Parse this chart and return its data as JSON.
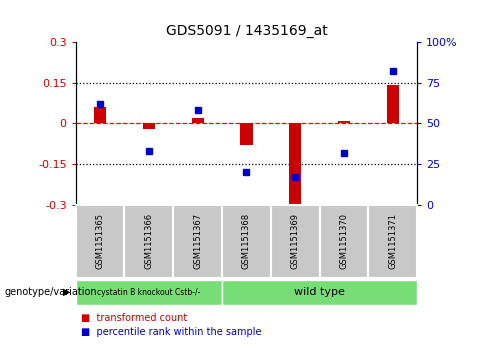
{
  "title": "GDS5091 / 1435169_at",
  "samples": [
    "GSM1151365",
    "GSM1151366",
    "GSM1151367",
    "GSM1151368",
    "GSM1151369",
    "GSM1151370",
    "GSM1151371"
  ],
  "red_values": [
    0.06,
    -0.02,
    0.02,
    -0.08,
    -0.32,
    0.01,
    0.14
  ],
  "blue_values": [
    62,
    33,
    58,
    20,
    17,
    32,
    82
  ],
  "ylim": [
    -0.3,
    0.3
  ],
  "y2lim": [
    0,
    100
  ],
  "yticks": [
    -0.3,
    -0.15,
    0.0,
    0.15,
    0.3
  ],
  "y2ticks": [
    0,
    25,
    50,
    75,
    100
  ],
  "ytick_labels": [
    "-0.3",
    "-0.15",
    "0",
    "0.15",
    "0.3"
  ],
  "y2tick_labels": [
    "0",
    "25",
    "50",
    "75",
    "100%"
  ],
  "hlines": [
    -0.15,
    0.0,
    0.15
  ],
  "hline_styles": [
    "dotted",
    "dashed",
    "dotted"
  ],
  "hline_colors": [
    "black",
    "red",
    "black"
  ],
  "red_color": "#cc0000",
  "blue_color": "#0000cc",
  "bar_width": 0.25,
  "genotype_label": "genotype/variation",
  "legend_items": [
    {
      "label": "transformed count",
      "color": "#cc0000"
    },
    {
      "label": "percentile rank within the sample",
      "color": "#0000cc"
    }
  ],
  "left_ylabel_color": "#cc0000",
  "right_ylabel_color": "#0000cc",
  "bg_color": "#c8c8c8",
  "grp1_label": "cystatin B knockout Cstb-/-",
  "grp2_label": "wild type",
  "grp1_color": "#77dd77",
  "grp2_color": "#77dd77"
}
